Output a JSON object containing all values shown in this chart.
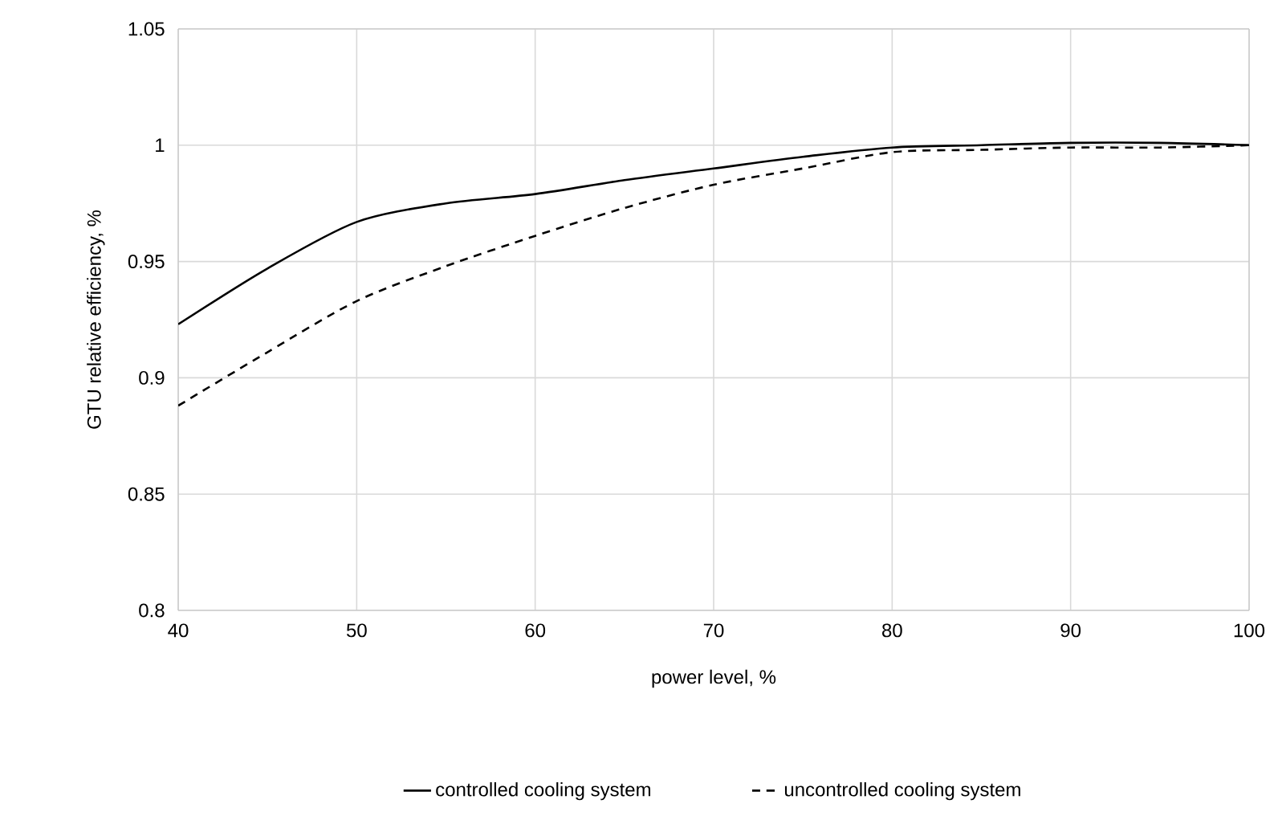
{
  "chart_data": {
    "type": "line",
    "xlabel": "power level, %",
    "ylabel": "GTU relative efficiency, %",
    "xlim": [
      40,
      100
    ],
    "xticks": [
      40,
      50,
      60,
      70,
      80,
      90,
      100
    ],
    "ylim": [
      0.8,
      1.05
    ],
    "yticks": [
      0.8,
      0.85,
      0.9,
      0.95,
      1,
      1.05
    ],
    "grid": true,
    "legend": "bottom",
    "marker": "none",
    "x": [
      40,
      45,
      50,
      55,
      60,
      65,
      70,
      75,
      80,
      85,
      90,
      95,
      100
    ],
    "series": [
      {
        "name": "controlled cooling system",
        "color": "#000000",
        "line_style": "solid",
        "values": [
          0.923,
          0.947,
          0.967,
          0.975,
          0.979,
          0.985,
          0.99,
          0.995,
          0.999,
          1.0,
          1.001,
          1.001,
          1.0
        ]
      },
      {
        "name": "uncontrolled cooling system",
        "color": "#000000",
        "line_style": "dashed",
        "values": [
          0.888,
          0.911,
          0.933,
          0.948,
          0.961,
          0.973,
          0.983,
          0.99,
          0.997,
          0.998,
          0.999,
          0.999,
          1.0
        ]
      }
    ]
  }
}
